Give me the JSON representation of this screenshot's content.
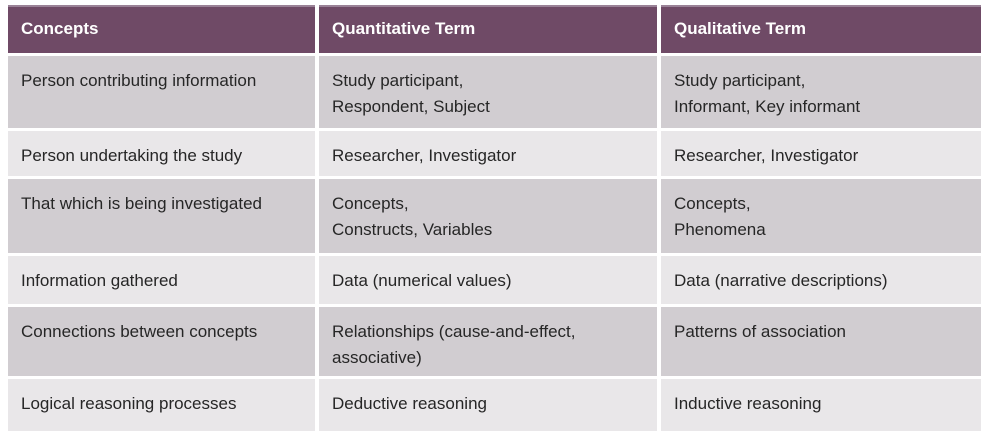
{
  "header": {
    "columns": [
      "Concepts",
      "Quantitative Term",
      "Qualitative Term"
    ]
  },
  "table": {
    "rows": [
      {
        "concept": "Person contributing information",
        "quantitative": "Study participant,\nRespondent, Subject",
        "qualitative": "Study participant,\nInformant, Key informant"
      },
      {
        "concept": "Person undertaking the study",
        "quantitative": "Researcher, Investigator",
        "qualitative": "Researcher, Investigator"
      },
      {
        "concept": "That which is being investigated",
        "quantitative": "Concepts,\nConstructs, Variables",
        "qualitative": "Concepts,\nPhenomena"
      },
      {
        "concept": "Information gathered",
        "quantitative": "Data (numerical values)",
        "qualitative": "Data (narrative descriptions)"
      },
      {
        "concept": "Connections between concepts",
        "quantitative": "Relationships (cause-and-effect,\nassociative)",
        "qualitative": "Patterns of association"
      },
      {
        "concept": "Logical reasoning processes",
        "quantitative": "Deductive reasoning",
        "qualitative": "Inductive reasoning"
      }
    ]
  },
  "colors": {
    "header_bg": "#6F4A66",
    "header_top_edge": "#9A8297",
    "header_text": "#FFFFFF",
    "row_dark": "#D1CDD1",
    "row_light": "#E9E7E9",
    "body_text": "#262626",
    "background": "#FFFFFF"
  }
}
